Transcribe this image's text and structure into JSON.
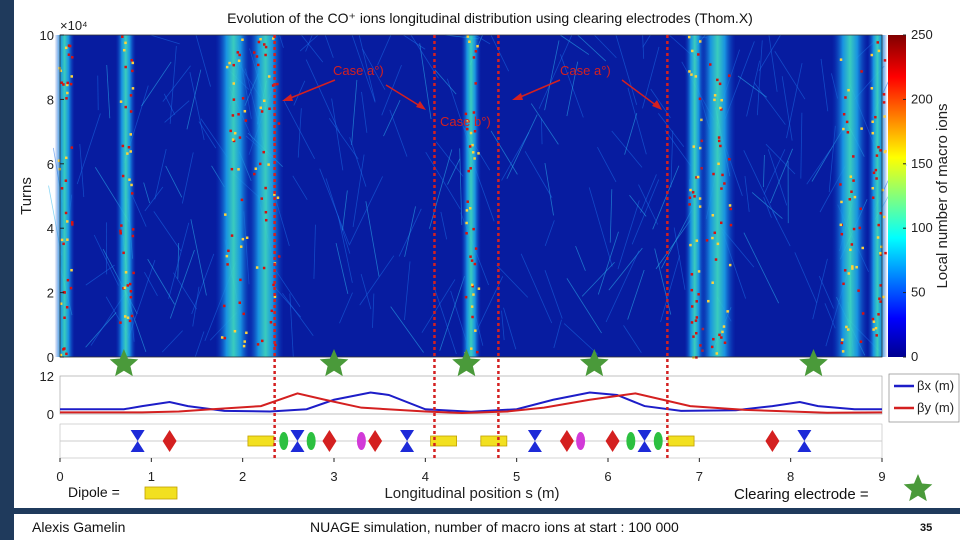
{
  "chart_data": {
    "type": "heatmap",
    "title": "Evolution of the CO⁺ ions longitudinal distribution using clearing electrodes (Thom.X)",
    "xlabel": "Longitudinal position s (m)",
    "ylabel": "Turns",
    "y_exponent": "×10⁴",
    "xlim": [
      0,
      9
    ],
    "ylim": [
      0,
      10
    ],
    "x_ticks": [
      "0",
      "1",
      "2",
      "3",
      "4",
      "5",
      "6",
      "7",
      "8",
      "9"
    ],
    "y_ticks": [
      "0",
      "2",
      "4",
      "6",
      "8",
      "10"
    ],
    "colorbar": {
      "label": "Local number of macro ions",
      "range": [
        0,
        250
      ],
      "ticks": [
        "0",
        "50",
        "100",
        "150",
        "200",
        "250"
      ]
    },
    "ion_bands_s": [
      0.05,
      0.72,
      1.9,
      2.25,
      4.5,
      6.95,
      7.2,
      8.65,
      8.95
    ],
    "clearing_electrodes_s": [
      0.7,
      3.0,
      4.45,
      5.85,
      8.25
    ],
    "electrode_positions_s": [
      2.35,
      4.1,
      4.8,
      6.65
    ],
    "annotations": [
      {
        "text": "Case a°)",
        "s": 2.35
      },
      {
        "text": "Case a°)",
        "s": 4.85
      },
      {
        "text": "Case b°)",
        "s": 4.45
      }
    ],
    "beta_plot": {
      "ylim": [
        0,
        12
      ],
      "y_ticks": [
        "0",
        "12"
      ],
      "legend": [
        "βx (m)",
        "βy (m)"
      ],
      "series": [
        {
          "name": "βx",
          "color": "#1d1dc8",
          "s": [
            0,
            0.7,
            0.9,
            1.2,
            1.4,
            1.8,
            2.3,
            2.7,
            3.0,
            3.4,
            3.6,
            4.0,
            4.5,
            5.0,
            5.4,
            5.8,
            6.1,
            6.4,
            6.8,
            7.4,
            7.8,
            8.1,
            8.3,
            8.7,
            9.0
          ],
          "values": [
            1.5,
            1.5,
            2.5,
            3.8,
            2.5,
            1.0,
            0.8,
            1.5,
            4.5,
            6.8,
            6.0,
            1.5,
            0.7,
            1.5,
            4.5,
            6.8,
            6.0,
            2.5,
            1.0,
            1.2,
            2.5,
            3.8,
            2.5,
            1.5,
            1.5
          ]
        },
        {
          "name": "βy",
          "color": "#d42020",
          "s": [
            0,
            0.9,
            1.3,
            1.6,
            2.2,
            2.6,
            2.9,
            3.3,
            4.0,
            4.4,
            4.9,
            5.3,
            5.8,
            6.3,
            6.6,
            6.9,
            7.5,
            8.0,
            8.4,
            9.0
          ],
          "values": [
            0.5,
            0.5,
            0.8,
            1.4,
            2.5,
            6.5,
            4.5,
            2.0,
            0.8,
            0.3,
            0.8,
            2.0,
            4.5,
            6.5,
            4.5,
            2.5,
            1.3,
            0.8,
            0.4,
            0.5
          ]
        }
      ]
    },
    "lattice": {
      "elements": [
        {
          "type": "quad-blue",
          "s": 0.85
        },
        {
          "type": "quad-red",
          "s": 1.2
        },
        {
          "type": "dipole",
          "s": 2.2
        },
        {
          "type": "corrector-green",
          "s": 2.45
        },
        {
          "type": "quad-blue",
          "s": 2.6
        },
        {
          "type": "corrector-green",
          "s": 2.75
        },
        {
          "type": "quad-red",
          "s": 2.95
        },
        {
          "type": "corrector-magenta",
          "s": 3.3
        },
        {
          "type": "quad-red",
          "s": 3.45
        },
        {
          "type": "quad-blue",
          "s": 3.8
        },
        {
          "type": "dipole",
          "s": 4.2
        },
        {
          "type": "dipole",
          "s": 4.75
        },
        {
          "type": "quad-blue",
          "s": 5.2
        },
        {
          "type": "quad-red",
          "s": 5.55
        },
        {
          "type": "corrector-magenta",
          "s": 5.7
        },
        {
          "type": "quad-red",
          "s": 6.05
        },
        {
          "type": "corrector-green",
          "s": 6.25
        },
        {
          "type": "quad-blue",
          "s": 6.4
        },
        {
          "type": "corrector-green",
          "s": 6.55
        },
        {
          "type": "dipole",
          "s": 6.8
        },
        {
          "type": "quad-red",
          "s": 7.8
        },
        {
          "type": "quad-blue",
          "s": 8.15
        }
      ]
    },
    "colors": {
      "heat_low": "#000088",
      "heat_mid": "#00c8ff",
      "heat_high": "#d81010",
      "electrode_star": "#4a9a3a",
      "dipole": "#f2e020"
    }
  },
  "legend_dipole_label": "Dipole =",
  "legend_clearing_label": "Clearing electrode =",
  "footer": {
    "author": "Alexis Gamelin",
    "simulation": "NUAGE simulation, number of macro ions at start : 100 000",
    "page": "35"
  }
}
